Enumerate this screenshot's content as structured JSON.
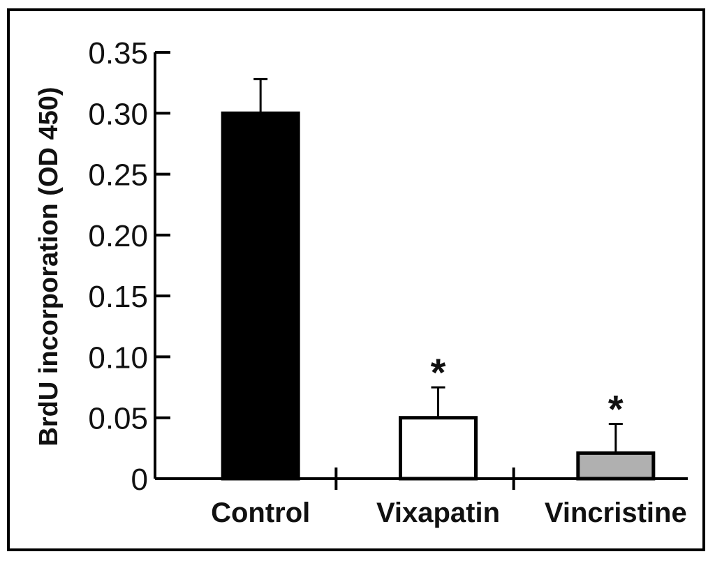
{
  "chart_data": {
    "type": "bar",
    "title": "",
    "xlabel": "",
    "ylabel": "BrdU incorporation (OD 450)",
    "ylim": [
      0,
      0.35
    ],
    "y_ticks": [
      {
        "value": 0,
        "label": "0"
      },
      {
        "value": 0.05,
        "label": "0.05"
      },
      {
        "value": 0.1,
        "label": "0.10"
      },
      {
        "value": 0.15,
        "label": "0.15"
      },
      {
        "value": 0.2,
        "label": "0.20"
      },
      {
        "value": 0.25,
        "label": "0.25"
      },
      {
        "value": 0.3,
        "label": "0.30"
      },
      {
        "value": 0.35,
        "label": "0.35"
      }
    ],
    "grid": false,
    "legend": "none",
    "categories": [
      "Control",
      "Vixapatin",
      "Vincristine"
    ],
    "values": [
      0.3,
      0.05,
      0.021
    ],
    "error_upper": [
      0.028,
      0.025,
      0.024
    ],
    "bar_colors": [
      "#000000",
      "#ffffff",
      "#b0b0b0"
    ],
    "annotations": [
      "",
      "*",
      "*"
    ]
  }
}
